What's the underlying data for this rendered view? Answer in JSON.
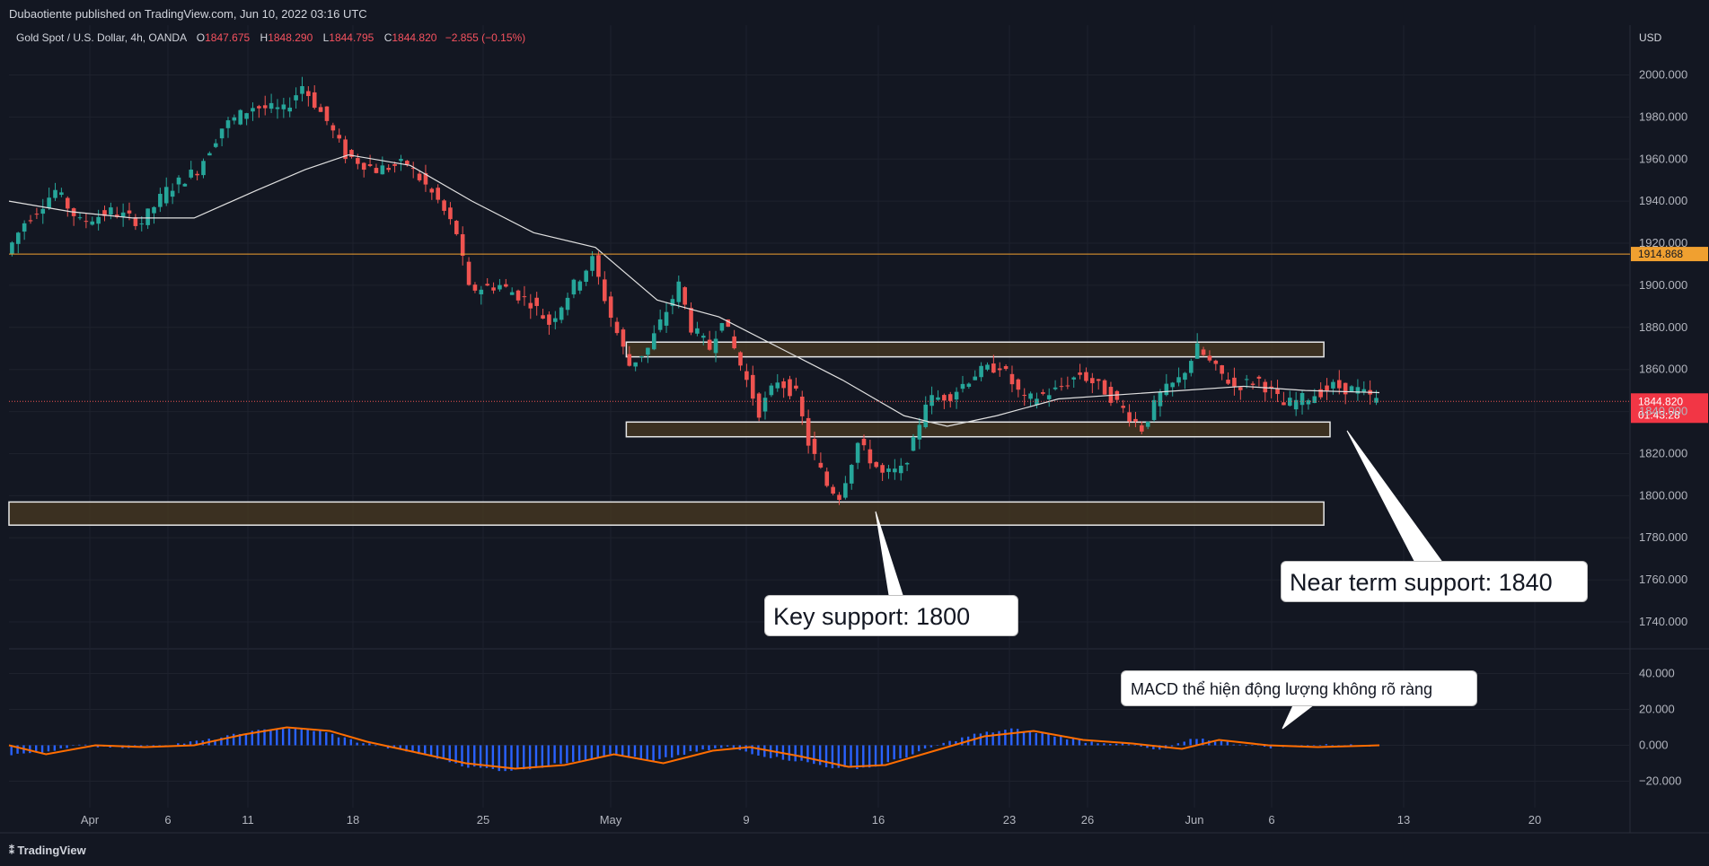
{
  "header": {
    "published": "Dubaotiente published on TradingView.com, Jun 10, 2022 03:16 UTC"
  },
  "legend": {
    "symbol": "Gold Spot / U.S. Dollar, 4h, OANDA",
    "o_label": "O",
    "o_value": "1847.675",
    "h_label": "H",
    "h_value": "1848.290",
    "l_label": "L",
    "l_value": "1844.795",
    "c_label": "C",
    "c_value": "1844.820",
    "change": "−2.855 (−0.15%)"
  },
  "currency": "USD",
  "price_labels": {
    "level_line": "1914.868",
    "last_price": "1844.820",
    "countdown": "01:43:28"
  },
  "callouts": {
    "key_support": "Key support: 1800",
    "near_support": "Near term support: 1840",
    "macd_note": "MACD thể hiện động lượng không rõ ràng"
  },
  "footer": {
    "brand": "TradingView"
  },
  "colors": {
    "background": "#131722",
    "up": "#26a69a",
    "down": "#ef5350",
    "level_line": "#f0a030",
    "zone_fill": "#4a3a22",
    "macd_hist": "#2962ff",
    "signal": "#ff6d00",
    "ma": "#e0e0e0"
  },
  "chart_data": [
    {
      "type": "candlestick",
      "title": "Gold Spot / U.S. Dollar, 4h, OANDA",
      "y_axis": {
        "range": [
          1725,
          2010
        ],
        "ticks": [
          "2000.000",
          "1980.000",
          "1960.000",
          "1940.000",
          "1920.000",
          "1900.000",
          "1880.000",
          "1860.000",
          "1840.000",
          "1820.000",
          "1800.000",
          "1780.000",
          "1760.000",
          "1740.000"
        ]
      },
      "x_axis": {
        "ticks": [
          "Apr",
          "6",
          "11",
          "18",
          "25",
          "May",
          "9",
          "16",
          "23",
          "26",
          "Jun",
          "6",
          "13",
          "20"
        ]
      },
      "close_path": [
        {
          "x": 0,
          "y": 1915
        },
        {
          "x": 3,
          "y": 1930
        },
        {
          "x": 8,
          "y": 1945
        },
        {
          "x": 12,
          "y": 1930
        },
        {
          "x": 17,
          "y": 1935
        },
        {
          "x": 22,
          "y": 1930
        },
        {
          "x": 26,
          "y": 1945
        },
        {
          "x": 31,
          "y": 1955
        },
        {
          "x": 35,
          "y": 1975
        },
        {
          "x": 40,
          "y": 1985
        },
        {
          "x": 45,
          "y": 1983
        },
        {
          "x": 48,
          "y": 1995
        },
        {
          "x": 52,
          "y": 1978
        },
        {
          "x": 55,
          "y": 1962
        },
        {
          "x": 60,
          "y": 1955
        },
        {
          "x": 65,
          "y": 1958
        },
        {
          "x": 70,
          "y": 1940
        },
        {
          "x": 73,
          "y": 1925
        },
        {
          "x": 75,
          "y": 1898
        },
        {
          "x": 80,
          "y": 1900
        },
        {
          "x": 85,
          "y": 1892
        },
        {
          "x": 88,
          "y": 1882
        },
        {
          "x": 92,
          "y": 1900
        },
        {
          "x": 95,
          "y": 1912
        },
        {
          "x": 98,
          "y": 1885
        },
        {
          "x": 101,
          "y": 1862
        },
        {
          "x": 104,
          "y": 1870
        },
        {
          "x": 107,
          "y": 1888
        },
        {
          "x": 109,
          "y": 1900
        },
        {
          "x": 111,
          "y": 1880
        },
        {
          "x": 114,
          "y": 1870
        },
        {
          "x": 116,
          "y": 1885
        },
        {
          "x": 119,
          "y": 1862
        },
        {
          "x": 122,
          "y": 1840
        },
        {
          "x": 125,
          "y": 1855
        },
        {
          "x": 128,
          "y": 1848
        },
        {
          "x": 130,
          "y": 1825
        },
        {
          "x": 133,
          "y": 1805
        },
        {
          "x": 135,
          "y": 1800
        },
        {
          "x": 138,
          "y": 1825
        },
        {
          "x": 142,
          "y": 1810
        },
        {
          "x": 145,
          "y": 1812
        },
        {
          "x": 147,
          "y": 1825
        },
        {
          "x": 149,
          "y": 1845
        },
        {
          "x": 153,
          "y": 1848
        },
        {
          "x": 157,
          "y": 1858
        },
        {
          "x": 161,
          "y": 1862
        },
        {
          "x": 165,
          "y": 1845
        },
        {
          "x": 170,
          "y": 1850
        },
        {
          "x": 174,
          "y": 1858
        },
        {
          "x": 178,
          "y": 1850
        },
        {
          "x": 182,
          "y": 1838
        },
        {
          "x": 184,
          "y": 1832
        },
        {
          "x": 187,
          "y": 1848
        },
        {
          "x": 190,
          "y": 1855
        },
        {
          "x": 193,
          "y": 1870
        },
        {
          "x": 196,
          "y": 1860
        },
        {
          "x": 199,
          "y": 1852
        },
        {
          "x": 203,
          "y": 1855
        },
        {
          "x": 207,
          "y": 1843
        },
        {
          "x": 211,
          "y": 1847
        },
        {
          "x": 215,
          "y": 1852
        },
        {
          "x": 219,
          "y": 1850
        },
        {
          "x": 222,
          "y": 1845
        }
      ],
      "moving_average": [
        {
          "x": 0,
          "y": 1940
        },
        {
          "x": 10,
          "y": 1935
        },
        {
          "x": 20,
          "y": 1932
        },
        {
          "x": 30,
          "y": 1932
        },
        {
          "x": 40,
          "y": 1945
        },
        {
          "x": 48,
          "y": 1955
        },
        {
          "x": 55,
          "y": 1962
        },
        {
          "x": 65,
          "y": 1957
        },
        {
          "x": 75,
          "y": 1940
        },
        {
          "x": 85,
          "y": 1925
        },
        {
          "x": 95,
          "y": 1918
        },
        {
          "x": 105,
          "y": 1893
        },
        {
          "x": 115,
          "y": 1885
        },
        {
          "x": 125,
          "y": 1870
        },
        {
          "x": 135,
          "y": 1855
        },
        {
          "x": 145,
          "y": 1838
        },
        {
          "x": 152,
          "y": 1833
        },
        {
          "x": 160,
          "y": 1838
        },
        {
          "x": 170,
          "y": 1846
        },
        {
          "x": 180,
          "y": 1848
        },
        {
          "x": 190,
          "y": 1850
        },
        {
          "x": 200,
          "y": 1852
        },
        {
          "x": 210,
          "y": 1850
        },
        {
          "x": 222,
          "y": 1849
        }
      ],
      "horizontal_line": 1914.868,
      "zones": [
        {
          "x_start": 100,
          "x_end": 213,
          "y_low": 1866,
          "y_high": 1873
        },
        {
          "x_start": 100,
          "x_end": 214,
          "y_low": 1828,
          "y_high": 1835
        },
        {
          "x_start": 0,
          "x_end": 213,
          "y_low": 1786,
          "y_high": 1797
        }
      ],
      "last_price": 1844.82,
      "x_domain": [
        0,
        255
      ]
    },
    {
      "type": "histogram+line",
      "title": "MACD",
      "y_axis": {
        "range": [
          -30,
          50
        ],
        "ticks": [
          "40.000",
          "20.000",
          "0.000",
          "−20.000"
        ]
      },
      "histogram": [
        {
          "x": 0,
          "y": -5
        },
        {
          "x": 5,
          "y": -4
        },
        {
          "x": 10,
          "y": 0
        },
        {
          "x": 18,
          "y": -1
        },
        {
          "x": 25,
          "y": 0
        },
        {
          "x": 32,
          "y": 3
        },
        {
          "x": 38,
          "y": 7
        },
        {
          "x": 44,
          "y": 10
        },
        {
          "x": 50,
          "y": 8
        },
        {
          "x": 56,
          "y": 2
        },
        {
          "x": 62,
          "y": -2
        },
        {
          "x": 68,
          "y": -6
        },
        {
          "x": 74,
          "y": -12
        },
        {
          "x": 80,
          "y": -14
        },
        {
          "x": 86,
          "y": -12
        },
        {
          "x": 92,
          "y": -8
        },
        {
          "x": 98,
          "y": -5
        },
        {
          "x": 104,
          "y": -9
        },
        {
          "x": 110,
          "y": -4
        },
        {
          "x": 116,
          "y": -1
        },
        {
          "x": 122,
          "y": -6
        },
        {
          "x": 128,
          "y": -9
        },
        {
          "x": 134,
          "y": -13
        },
        {
          "x": 140,
          "y": -12
        },
        {
          "x": 146,
          "y": -5
        },
        {
          "x": 150,
          "y": 0
        },
        {
          "x": 156,
          "y": 6
        },
        {
          "x": 162,
          "y": 9
        },
        {
          "x": 168,
          "y": 6
        },
        {
          "x": 174,
          "y": 2
        },
        {
          "x": 180,
          "y": 1
        },
        {
          "x": 186,
          "y": -3
        },
        {
          "x": 192,
          "y": 4
        },
        {
          "x": 198,
          "y": 1
        },
        {
          "x": 204,
          "y": -1
        },
        {
          "x": 210,
          "y": 0
        },
        {
          "x": 216,
          "y": 0
        },
        {
          "x": 222,
          "y": 0
        }
      ],
      "signal": [
        {
          "x": 0,
          "y": 0
        },
        {
          "x": 6,
          "y": -5
        },
        {
          "x": 14,
          "y": 0
        },
        {
          "x": 22,
          "y": -1
        },
        {
          "x": 30,
          "y": 0
        },
        {
          "x": 38,
          "y": 6
        },
        {
          "x": 45,
          "y": 10
        },
        {
          "x": 52,
          "y": 8
        },
        {
          "x": 58,
          "y": 2
        },
        {
          "x": 66,
          "y": -4
        },
        {
          "x": 74,
          "y": -10
        },
        {
          "x": 82,
          "y": -13
        },
        {
          "x": 90,
          "y": -11
        },
        {
          "x": 98,
          "y": -5
        },
        {
          "x": 106,
          "y": -10
        },
        {
          "x": 114,
          "y": -3
        },
        {
          "x": 120,
          "y": -1
        },
        {
          "x": 128,
          "y": -6
        },
        {
          "x": 136,
          "y": -12
        },
        {
          "x": 142,
          "y": -11
        },
        {
          "x": 150,
          "y": -3
        },
        {
          "x": 158,
          "y": 5
        },
        {
          "x": 166,
          "y": 8
        },
        {
          "x": 174,
          "y": 3
        },
        {
          "x": 182,
          "y": 1
        },
        {
          "x": 190,
          "y": -2
        },
        {
          "x": 196,
          "y": 3
        },
        {
          "x": 204,
          "y": 0
        },
        {
          "x": 212,
          "y": -1
        },
        {
          "x": 222,
          "y": 0
        }
      ]
    }
  ]
}
